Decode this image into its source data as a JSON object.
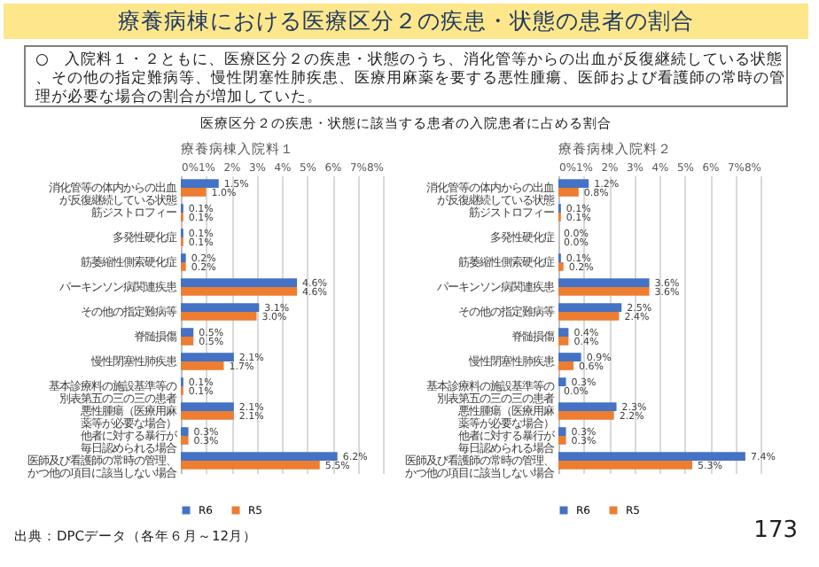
{
  "chart_data": [
    {
      "type": "other",
      "title": "療養病棟における医療区分２の疾患・状態の患者の割合",
      "subtitle": "○　入院料１・２ともに、医療区分２の疾患・状態のうち、消化管等からの出血が反復継続している状態、その他の指定難病等、慢性閉塞性肺疾患、医療用麻薬を要する悪性腫瘍、医師および看護師の常時の管理が必要な場合の割合が増加していた。",
      "annotations": [
        "医療区分２の疾患・状態に該当する患者の入院患者に占める割合",
        "出典：DPCデータ（各年６月～12月）",
        "173"
      ]
    },
    {
      "type": "bar",
      "orientation": "horizontal",
      "title": "療養病棟入院料１",
      "categories": [
        "消化管等の体内からの出血が反復継続している状態",
        "筋ジストロフィー",
        "多発性硬化症",
        "筋萎縮性側索硬化症",
        "パーキンソン病関連疾患",
        "その他の指定難病等",
        "脊髄損傷",
        "慢性閉塞性肺疾患",
        "基本診療料の施設基準等の別表第五の三の三の患者",
        "悪性腫瘍（医療用麻薬等が必要な場合）",
        "他者に対する暴行が毎日認められる場合",
        "医師及び看護師の常時の管理、かつ他の項目に該当しない場合"
      ],
      "series": [
        {
          "name": "R6",
          "color": "#4472c4",
          "values": [
            1.5,
            0.1,
            0.1,
            0.2,
            4.6,
            3.1,
            0.5,
            2.1,
            0.1,
            2.1,
            0.3,
            6.2
          ],
          "value_labels": [
            "1.5%",
            "0.1%",
            "0.1%",
            "0.2%",
            "4.6%",
            "3.1%",
            "0.5%",
            "2.1%",
            "0.1%",
            "2.1%",
            "0.3%",
            "6.2%"
          ]
        },
        {
          "name": "R5",
          "color": "#ed7d31",
          "values": [
            1.0,
            0.1,
            0.1,
            0.2,
            4.6,
            3.0,
            0.5,
            1.7,
            0.1,
            2.1,
            0.3,
            5.5
          ],
          "value_labels": [
            "1.0%",
            "0.1%",
            "0.1%",
            "0.2%",
            "4.6%",
            "3.0%",
            "0.5%",
            "1.7%",
            "0.1%",
            "2.1%",
            "0.3%",
            "5.5%"
          ]
        }
      ],
      "xlim": [
        0,
        8
      ],
      "xticks": [
        {
          "value": 0,
          "label": "0%"
        },
        {
          "value": 1,
          "label": "1%"
        },
        {
          "value": 2,
          "label": "2%"
        },
        {
          "value": 3,
          "label": "3%"
        },
        {
          "value": 4,
          "label": "4%"
        },
        {
          "value": 5,
          "label": "5%"
        },
        {
          "value": 6,
          "label": "6%"
        },
        {
          "value": 7,
          "label": "7%"
        },
        {
          "value": 8,
          "label": "8%"
        }
      ],
      "grid": "x",
      "legend": "bottom"
    },
    {
      "type": "bar",
      "orientation": "horizontal",
      "title": "療養病棟入院料２",
      "categories": [
        "消化管等の体内からの出血が反復継続している状態",
        "筋ジストロフィー",
        "多発性硬化症",
        "筋萎縮性側索硬化症",
        "パーキンソン病関連疾患",
        "その他の指定難病等",
        "脊髄損傷",
        "慢性閉塞性肺疾患",
        "基本診療料の施設基準等の別表第五の三の三の患者",
        "悪性腫瘍（医療用麻薬等が必要な場合）",
        "他者に対する暴行が毎日認められる場合",
        "医師及び看護師の常時の管理、かつ他の項目に該当しない場合"
      ],
      "series": [
        {
          "name": "R6",
          "color": "#4472c4",
          "values": [
            1.2,
            0.1,
            0.0,
            0.1,
            3.6,
            2.5,
            0.4,
            0.9,
            0.3,
            2.3,
            0.3,
            7.4
          ],
          "value_labels": [
            "1.2%",
            "0.1%",
            "0.0%",
            "0.1%",
            "3.6%",
            "2.5%",
            "0.4%",
            "0.9%",
            "0.3%",
            "2.3%",
            "0.3%",
            "7.4%"
          ]
        },
        {
          "name": "R5",
          "color": "#ed7d31",
          "values": [
            0.8,
            0.1,
            0.0,
            0.2,
            3.6,
            2.4,
            0.4,
            0.6,
            0.0,
            2.2,
            0.3,
            5.3
          ],
          "value_labels": [
            "0.8%",
            "0.1%",
            "0.0%",
            "0.2%",
            "3.6%",
            "2.4%",
            "0.4%",
            "0.6%",
            "0.0%",
            "2.2%",
            "0.3%",
            "5.3%"
          ]
        }
      ],
      "xlim": [
        0,
        8
      ],
      "xticks": [
        {
          "value": 0,
          "label": "0%"
        },
        {
          "value": 1,
          "label": "1%"
        },
        {
          "value": 2,
          "label": "2%"
        },
        {
          "value": 3,
          "label": "3%"
        },
        {
          "value": 4,
          "label": "4%"
        },
        {
          "value": 5,
          "label": "5%"
        },
        {
          "value": 6,
          "label": "6%"
        },
        {
          "value": 7,
          "label": "7%"
        },
        {
          "value": 8,
          "label": "8%"
        }
      ],
      "grid": "x",
      "legend": "bottom"
    }
  ]
}
